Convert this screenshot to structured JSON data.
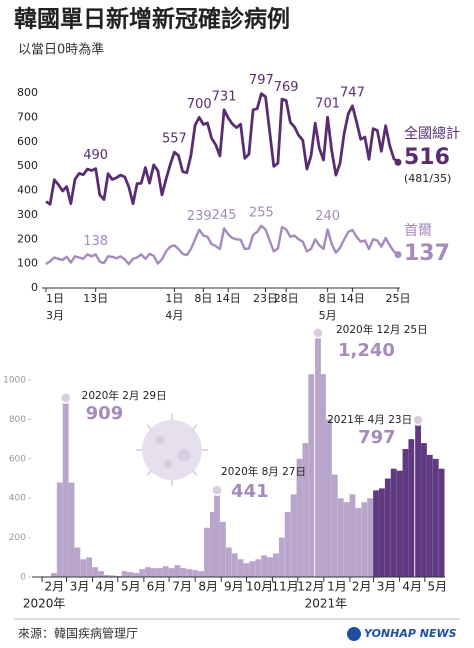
{
  "chart_data": [
    {
      "type": "line",
      "title": "韓國單日新增新冠確診病例",
      "subtitle": "以當日0時為準",
      "x": [
        0,
        1,
        2,
        3,
        4,
        5,
        6,
        7,
        8,
        9,
        10,
        11,
        12,
        13,
        14,
        15,
        16,
        17,
        18,
        19,
        20,
        21,
        22,
        23,
        24,
        25,
        26,
        27,
        28,
        29,
        30,
        31,
        32,
        33,
        34,
        35,
        36,
        37,
        38,
        39,
        40,
        41,
        42,
        43,
        44,
        45,
        46,
        47,
        48,
        49,
        50,
        51,
        52,
        53,
        54,
        55,
        56,
        57,
        58,
        59,
        60,
        61,
        62,
        63,
        64,
        65,
        66,
        67,
        68,
        69,
        70,
        71,
        72,
        73,
        74,
        75,
        76,
        77,
        78,
        79,
        80,
        81,
        82,
        83,
        84,
        85
      ],
      "xlim": [
        0,
        85
      ],
      "xticks": [
        {
          "value": 0,
          "label": "1日"
        },
        {
          "value": 12,
          "label": "13日"
        },
        {
          "value": 31,
          "label": "1日"
        },
        {
          "value": 38,
          "label": "8日"
        },
        {
          "value": 44,
          "label": "14日"
        },
        {
          "value": 53,
          "label": "23日"
        },
        {
          "value": 58,
          "label": "28日"
        },
        {
          "value": 68,
          "label": "8日"
        },
        {
          "value": 74,
          "label": "14日"
        },
        {
          "value": 85,
          "label": "25日"
        }
      ],
      "month_labels": [
        {
          "value": 0,
          "label": "3月"
        },
        {
          "value": 31,
          "label": "4月"
        },
        {
          "value": 68,
          "label": "5月"
        }
      ],
      "ylim": [
        0,
        800
      ],
      "yticks": [
        0,
        100,
        200,
        300,
        400,
        500,
        600,
        700,
        800
      ],
      "series": [
        {
          "name": "全國總計",
          "color": "#5a2d73",
          "note": "(481/35)",
          "values": [
            355,
            344,
            444,
            424,
            398,
            416,
            346,
            446,
            470,
            465,
            488,
            482,
            490,
            382,
            363,
            469,
            445,
            452,
            463,
            456,
            415,
            346,
            428,
            430,
            494,
            430,
            505,
            482,
            382,
            447,
            506,
            557,
            543,
            477,
            473,
            543,
            668,
            700,
            671,
            677,
            614,
            587,
            542,
            731,
            698,
            673,
            658,
            672,
            532,
            549,
            731,
            735,
            797,
            785,
            644,
            499,
            512,
            775,
            769,
            680,
            661,
            627,
            606,
            488,
            541,
            676,
            574,
            525,
            701,
            564,
            463,
            511,
            635,
            715,
            747,
            681,
            610,
            619,
            528,
            654,
            646,
            561,
            666,
            585,
            530,
            516
          ],
          "value_labels": [
            null,
            null,
            null,
            null,
            null,
            null,
            null,
            null,
            null,
            null,
            null,
            null,
            "490",
            null,
            null,
            null,
            null,
            null,
            null,
            null,
            null,
            null,
            null,
            null,
            null,
            null,
            null,
            null,
            null,
            null,
            null,
            "557",
            null,
            null,
            null,
            null,
            null,
            "700",
            null,
            null,
            null,
            null,
            null,
            "731",
            null,
            null,
            null,
            null,
            null,
            null,
            null,
            null,
            "797",
            null,
            null,
            null,
            null,
            null,
            "769",
            null,
            null,
            null,
            null,
            null,
            null,
            null,
            null,
            null,
            "701",
            null,
            null,
            null,
            null,
            null,
            "747",
            null,
            null,
            null,
            null,
            null,
            null,
            null,
            null,
            null,
            null,
            "516"
          ]
        },
        {
          "name": "首爾",
          "color": "#a58bbd",
          "values": [
            98,
            110,
            125,
            120,
            115,
            128,
            104,
            130,
            125,
            120,
            138,
            130,
            138,
            108,
            102,
            130,
            128,
            122,
            130,
            118,
            98,
            120,
            125,
            138,
            120,
            140,
            132,
            100,
            118,
            150,
            170,
            175,
            160,
            140,
            135,
            160,
            200,
            239,
            215,
            210,
            180,
            172,
            160,
            245,
            220,
            205,
            200,
            198,
            160,
            162,
            218,
            230,
            255,
            240,
            195,
            150,
            162,
            250,
            240,
            210,
            215,
            200,
            190,
            150,
            160,
            200,
            175,
            160,
            240,
            180,
            145,
            165,
            200,
            230,
            238,
            210,
            190,
            195,
            160,
            200,
            195,
            170,
            205,
            175,
            150,
            137
          ],
          "value_labels": [
            null,
            null,
            null,
            null,
            null,
            null,
            null,
            null,
            null,
            null,
            null,
            null,
            "138",
            null,
            null,
            null,
            null,
            null,
            null,
            null,
            null,
            null,
            null,
            null,
            null,
            null,
            null,
            null,
            null,
            null,
            null,
            null,
            null,
            null,
            null,
            null,
            null,
            "239",
            null,
            null,
            null,
            null,
            null,
            "245",
            null,
            null,
            null,
            null,
            null,
            null,
            null,
            null,
            "255",
            null,
            null,
            null,
            null,
            null,
            null,
            null,
            null,
            null,
            null,
            null,
            null,
            null,
            null,
            null,
            "240",
            null,
            null,
            null,
            null,
            null,
            null,
            null,
            null,
            null,
            null,
            null,
            null,
            null,
            null,
            null,
            null,
            "137"
          ]
        }
      ]
    },
    {
      "type": "bar",
      "xlim": [
        0,
        491
      ],
      "xticks": [
        {
          "value": 12,
          "label": "2月"
        },
        {
          "value": 41,
          "label": "3月"
        },
        {
          "value": 72,
          "label": "4月"
        },
        {
          "value": 102,
          "label": "5月"
        },
        {
          "value": 133,
          "label": "6月"
        },
        {
          "value": 163,
          "label": "7月"
        },
        {
          "value": 194,
          "label": "8月"
        },
        {
          "value": 225,
          "label": "9月"
        },
        {
          "value": 255,
          "label": "10月"
        },
        {
          "value": 286,
          "label": "11月"
        },
        {
          "value": 316,
          "label": "12月"
        },
        {
          "value": 347,
          "label": "1月"
        },
        {
          "value": 378,
          "label": "2月"
        },
        {
          "value": 406,
          "label": "3月"
        },
        {
          "value": 437,
          "label": "4月"
        },
        {
          "value": 467,
          "label": "5月"
        }
      ],
      "year_labels": [
        {
          "value": 12,
          "label": "2020年"
        },
        {
          "value": 347,
          "label": "2021年"
        }
      ],
      "ylim": [
        0,
        1300
      ],
      "yticks": [
        0,
        200,
        400,
        600,
        800,
        1000
      ],
      "series": [
        {
          "color": "#b9a5cc",
          "x": [
            5,
            12,
            19,
            26,
            33,
            40,
            47,
            54,
            61,
            68,
            75,
            82,
            89,
            96,
            103,
            110,
            117,
            124,
            131,
            138,
            145,
            152,
            159,
            166,
            173,
            180,
            187,
            194,
            201,
            208,
            215,
            220,
            227,
            234,
            241,
            248,
            255,
            262,
            269,
            276,
            283,
            290,
            297,
            304,
            311,
            318,
            325,
            332,
            340,
            346,
            353,
            360,
            367,
            374,
            381,
            388,
            395,
            402
          ],
          "values": [
            1,
            3,
            2,
            20,
            480,
            909,
            480,
            150,
            90,
            100,
            50,
            30,
            10,
            8,
            5,
            30,
            25,
            20,
            40,
            50,
            45,
            45,
            55,
            45,
            60,
            45,
            40,
            35,
            30,
            250,
            330,
            441,
            280,
            150,
            120,
            90,
            70,
            80,
            90,
            110,
            100,
            120,
            200,
            330,
            420,
            600,
            680,
            1030,
            1240,
            1030,
            800,
            520,
            400,
            380,
            420,
            350,
            380,
            400
          ]
        },
        {
          "color": "#5e3a80",
          "x": [
            409,
            416,
            423,
            430,
            437,
            444,
            451,
            459,
            466,
            473,
            480,
            487
          ],
          "values": [
            440,
            450,
            500,
            550,
            540,
            650,
            700,
            797,
            680,
            620,
            600,
            550
          ]
        }
      ],
      "annotations": [
        {
          "date": "2020年 2月 29日",
          "x": 40,
          "value": 909,
          "label": "909"
        },
        {
          "date": "2020年 8月 27日",
          "x": 220,
          "value": 441,
          "label": "441"
        },
        {
          "date": "2020年 12月 25日",
          "x": 340,
          "value": 1240,
          "label": "1,240"
        },
        {
          "date": "2021年 4月 23日",
          "x": 459,
          "value": 797,
          "label": "797"
        }
      ]
    }
  ],
  "footer": {
    "source": "來源：韓国疾病管理厅",
    "logo": "YONHAP NEWS"
  }
}
